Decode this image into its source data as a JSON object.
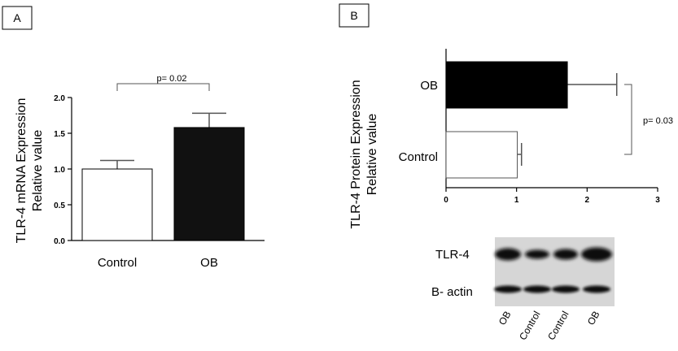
{
  "panels": {
    "a_label": "A",
    "b_label": "B"
  },
  "chart_data": [
    {
      "type": "bar",
      "orientation": "vertical",
      "panel": "A",
      "categories": [
        "Control",
        "OB"
      ],
      "values": [
        1.0,
        1.58
      ],
      "errors": [
        0.12,
        0.2
      ],
      "colors": [
        "#ffffff",
        "#111111"
      ],
      "ylabel": [
        "TLR-4 mRNA Expression",
        "Relative value"
      ],
      "ylim": [
        0,
        2.0
      ],
      "yticks": [
        "0.0",
        "0.5",
        "1.0",
        "1.5",
        "2.0"
      ],
      "annotation": "p= 0.02"
    },
    {
      "type": "bar",
      "orientation": "horizontal",
      "panel": "B",
      "categories": [
        "OB",
        "Control"
      ],
      "values": [
        1.72,
        1.01
      ],
      "errors": [
        0.7,
        0.06
      ],
      "colors": [
        "#000000",
        "#ffffff"
      ],
      "xlabel": [
        "TLR-4 Protein Expression",
        "Relative value"
      ],
      "xlim": [
        0,
        3
      ],
      "xticks": [
        "0",
        "1",
        "2",
        "3"
      ],
      "annotation": "p= 0.03"
    }
  ],
  "blot": {
    "rows": [
      "TLR-4",
      "B- actin"
    ],
    "lanes": [
      "OB",
      "Control",
      "Control",
      "OB"
    ]
  }
}
